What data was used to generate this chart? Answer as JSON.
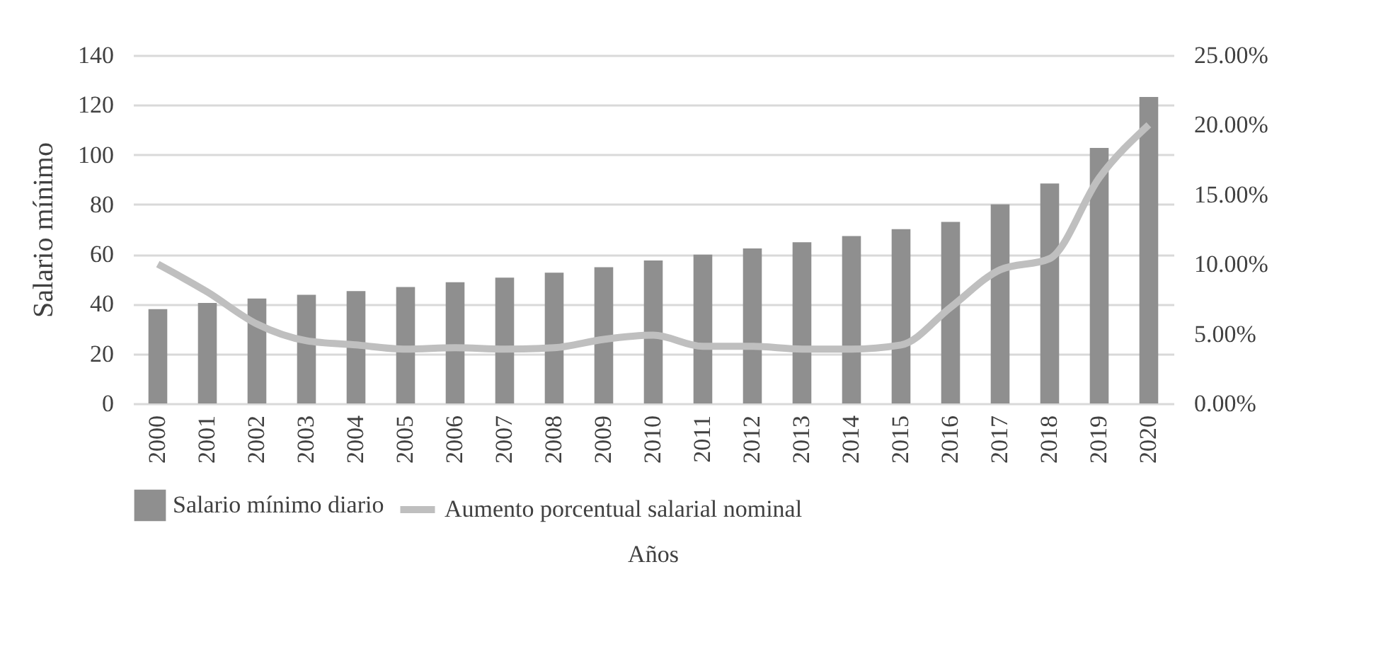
{
  "chart_data": {
    "type": "bar",
    "xlabel": "Años",
    "ylabel": "Salario mínimo",
    "categories": [
      "2000",
      "2001",
      "2002",
      "2003",
      "2004",
      "2005",
      "2006",
      "2007",
      "2008",
      "2009",
      "2010",
      "2011",
      "2012",
      "2013",
      "2014",
      "2015",
      "2016",
      "2017",
      "2018",
      "2019",
      "2020"
    ],
    "series": [
      {
        "name": "Salario mínimo diario",
        "color": "#8f8f8f",
        "values": [
          37.9,
          40.4,
          42.2,
          43.7,
          45.2,
          46.8,
          48.7,
          50.6,
          52.6,
          54.8,
          57.5,
          59.8,
          62.3,
          64.8,
          67.3,
          70.1,
          73.0,
          80.0,
          88.4,
          102.7,
          123.2
        ]
      },
      {
        "name": "Aumento porcentual  salarial nominal",
        "type": "line",
        "axis": "y2",
        "color": "#bfbfbf",
        "values": [
          10.0,
          8.0,
          5.7,
          4.5,
          4.2,
          3.9,
          4.0,
          3.9,
          4.0,
          4.6,
          4.9,
          4.1,
          4.1,
          3.9,
          3.9,
          4.2,
          6.9,
          9.6,
          10.4,
          16.2,
          20.0
        ]
      }
    ],
    "ylim": [
      0,
      140
    ],
    "yticks": [
      0,
      20,
      40,
      60,
      80,
      100,
      120,
      140
    ],
    "y2lim": [
      0,
      25
    ],
    "y2ticks": [
      {
        "value": 0,
        "label": "0.00%"
      },
      {
        "value": 5,
        "label": "5.00%"
      },
      {
        "value": 10,
        "label": "10.00%"
      },
      {
        "value": 15,
        "label": "15.00%"
      },
      {
        "value": 20,
        "label": "20.00%"
      },
      {
        "value": 25,
        "label": "25.00%"
      }
    ],
    "grid": "y",
    "legend": "bottom"
  }
}
